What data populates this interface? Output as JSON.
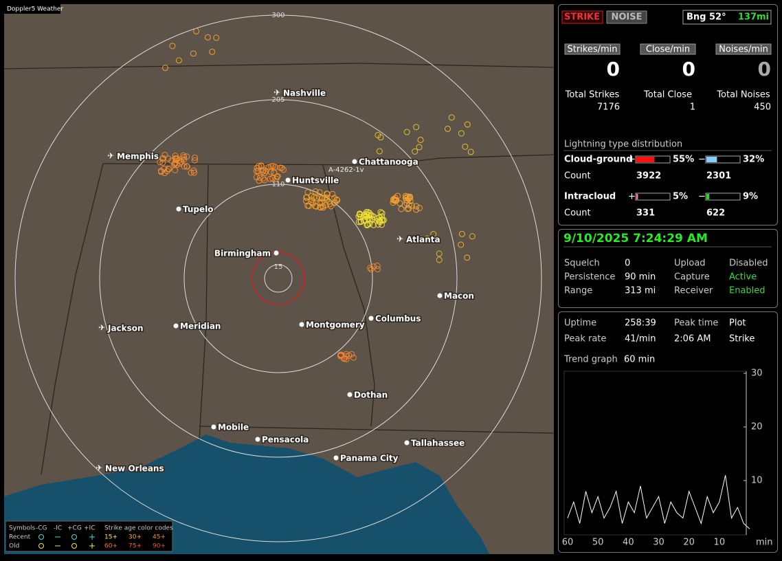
{
  "title_badge": "Doppler5 Weather",
  "map": {
    "range_labels": [
      "300",
      "205",
      "110",
      "15"
    ],
    "marker_label": "A-4262-1v",
    "cities": [
      {
        "label": "Nashville"
      },
      {
        "label": "Memphis"
      },
      {
        "label": "Chattanooga"
      },
      {
        "label": "Huntsville"
      },
      {
        "label": "Tupelo"
      },
      {
        "label": "Atlanta"
      },
      {
        "label": "Birmingham"
      },
      {
        "label": "Macon"
      },
      {
        "label": "Jackson"
      },
      {
        "label": "Meridian"
      },
      {
        "label": "Montgomery"
      },
      {
        "label": "Columbus"
      },
      {
        "label": "Dothan"
      },
      {
        "label": "Mobile"
      },
      {
        "label": "Pensacola"
      },
      {
        "label": "Tallahassee"
      },
      {
        "label": "Panama City"
      },
      {
        "label": "New Orleans"
      }
    ]
  },
  "legend": {
    "symbols": "Symbols",
    "columns": [
      "-CG",
      "-IC",
      "+CG",
      "+IC"
    ],
    "age_title": "Strike age color codes",
    "recent": "Recent",
    "old": "Old",
    "recent_ages": [
      "15+",
      "30+",
      "45+"
    ],
    "old_ages": [
      "60+",
      "75+",
      "90+"
    ]
  },
  "status": {
    "strike": "STRIKE",
    "noise": "NOISE",
    "bearing": "Bng 52°",
    "distance": "137mi"
  },
  "counters": [
    {
      "label": "Strikes/min",
      "value": 0,
      "total_label": "Total Strikes",
      "total": 7176
    },
    {
      "label": "Close/min",
      "value": 0,
      "total_label": "Total Close",
      "total": 1
    },
    {
      "label": "Noises/min",
      "value": 0,
      "total_label": "Total Noises",
      "total": 450
    }
  ],
  "distribution": {
    "title": "Lightning type distribution",
    "rows": [
      {
        "label": "Cloud-ground",
        "pos_sign": "+",
        "pos_percent": 55,
        "pos_label": "55%",
        "neg_sign": "−",
        "neg_percent": 32,
        "neg_label": "32%",
        "count_label": "Count",
        "pos_count": 3922,
        "neg_count": 2301
      },
      {
        "label": "Intracloud",
        "pos_sign": "+",
        "pos_percent": 5,
        "pos_label": "5%",
        "neg_sign": "−",
        "neg_percent": 9,
        "neg_label": "9%",
        "count_label": "Count",
        "pos_count": 331,
        "neg_count": 622
      }
    ]
  },
  "clock": "9/10/2025 7:24:29 AM",
  "settings": [
    [
      "Squelch",
      "0",
      "Upload",
      "Disabled"
    ],
    [
      "Persistence",
      "90 min",
      "Capture",
      "Active"
    ],
    [
      "Range",
      "313 mi",
      "Receiver",
      "Enabled"
    ]
  ],
  "stats": [
    [
      "Uptime",
      "258:39",
      "Peak time",
      "Plot"
    ],
    [
      "Peak rate",
      "41/min",
      "2:06 AM",
      "Strike"
    ]
  ],
  "trend": {
    "label": "Trend graph",
    "window": "60 min",
    "yticks": [
      30,
      20,
      10
    ],
    "xticks": [
      60,
      50,
      40,
      30,
      20,
      10
    ],
    "unit": "min",
    "values": [
      3,
      6,
      2,
      8,
      4,
      7,
      3,
      5,
      8,
      2,
      6,
      4,
      9,
      3,
      5,
      7,
      2,
      6,
      4,
      3,
      8,
      5,
      2,
      7,
      4,
      6,
      11,
      3,
      5,
      2,
      1
    ]
  }
}
